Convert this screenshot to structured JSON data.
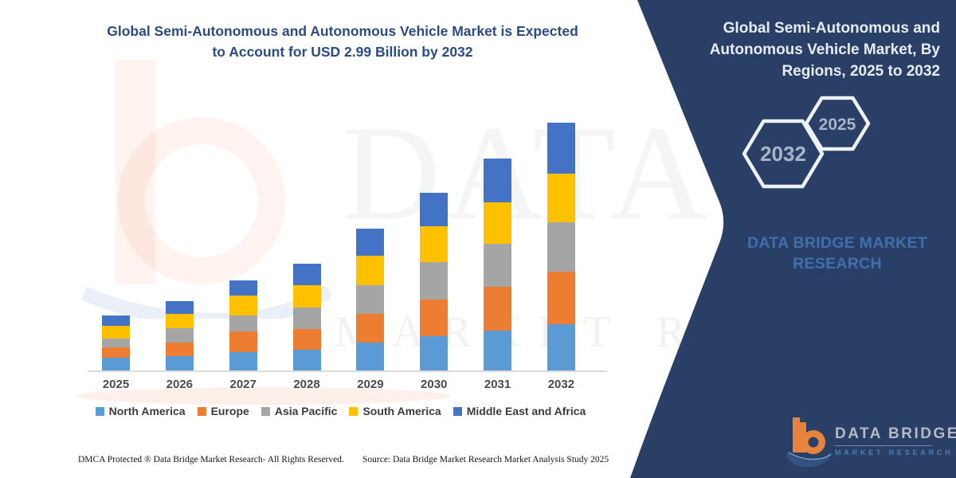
{
  "title": {
    "line1": "Global Semi-Autonomous and Autonomous Vehicle Market is Expected",
    "line2": "to Account for USD 2.99 Billion by 2032"
  },
  "chart_data": {
    "type": "bar",
    "stacked": true,
    "title": "Global Semi-Autonomous and Autonomous Vehicle Market is Expected to Account for USD 2.99 Billion by 2032",
    "unit": "USD Billion",
    "ylim": [
      0,
      3.2
    ],
    "grid": false,
    "legend_position": "bottom",
    "categories": [
      "2025",
      "2026",
      "2027",
      "2028",
      "2029",
      "2030",
      "2031",
      "2032"
    ],
    "series": [
      {
        "name": "North America",
        "color": "#5B9BD5",
        "values": [
          0.15,
          0.17,
          0.22,
          0.25,
          0.34,
          0.41,
          0.48,
          0.56
        ]
      },
      {
        "name": "Europe",
        "color": "#ED7D31",
        "values": [
          0.13,
          0.17,
          0.25,
          0.25,
          0.34,
          0.45,
          0.53,
          0.63
        ]
      },
      {
        "name": "Asia Pacific",
        "color": "#A5A5A5",
        "values": [
          0.11,
          0.17,
          0.19,
          0.26,
          0.35,
          0.45,
          0.52,
          0.6
        ]
      },
      {
        "name": "South America",
        "color": "#FFC000",
        "values": [
          0.15,
          0.17,
          0.24,
          0.27,
          0.35,
          0.43,
          0.5,
          0.59
        ]
      },
      {
        "name": "Middle East and Africa",
        "color": "#4472C4",
        "values": [
          0.12,
          0.16,
          0.19,
          0.26,
          0.33,
          0.41,
          0.53,
          0.61
        ]
      }
    ],
    "totals": [
      0.66,
      0.84,
      1.09,
      1.29,
      1.71,
      2.15,
      2.56,
      2.99
    ]
  },
  "side_panel": {
    "title": "Global Semi-Autonomous and Autonomous Vehicle Market, By Regions, 2025 to 2032",
    "hexagons": [
      "2032",
      "2025"
    ],
    "brand": "DATA BRIDGE MARKET RESEARCH",
    "bg_color": "#2a3f66"
  },
  "watermark": {
    "line1": "DATA BRIDGE",
    "line2": "MARKET RESEARCH"
  },
  "footer": {
    "dmca": "DMCA Protected ® Data Bridge Market Research-  All Rights Reserved.",
    "source": "Source: Data Bridge Market Research  Market Analysis Study 2025",
    "logo_line1": "DATA BRIDGE",
    "logo_line2": "MARKET RESEARCH"
  },
  "colors": {
    "panel_navy": "#2a3f66",
    "title_blue": "#2b4b84",
    "brand_blue": "#3f6fae"
  }
}
